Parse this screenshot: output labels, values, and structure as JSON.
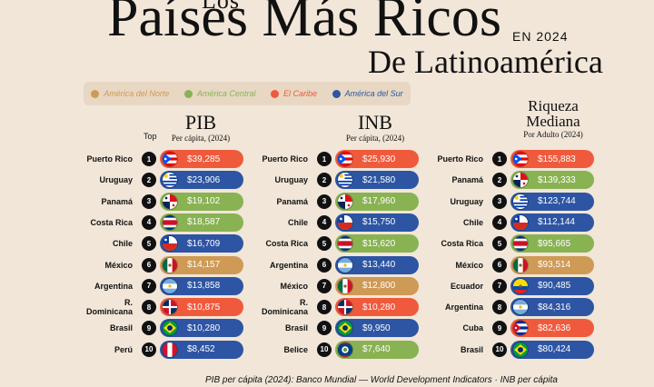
{
  "title": {
    "top": "Los",
    "main": "Países Más Ricos",
    "year": "EN 2024",
    "sub": "De Latinoamérica"
  },
  "colors": {
    "norte": "#cf9a55",
    "central": "#89b253",
    "caribe": "#f05a3c",
    "sur": "#2d55a3"
  },
  "legend": [
    {
      "label": "América del Norte",
      "region": "norte"
    },
    {
      "label": "América Central",
      "region": "central"
    },
    {
      "label": "El Caribe",
      "region": "caribe"
    },
    {
      "label": "América del Sur",
      "region": "sur"
    }
  ],
  "top_label": "Top",
  "columns": [
    {
      "heading": "PIB",
      "heading2": "",
      "subheading": "Per cápita, (2024)",
      "rows": [
        {
          "rank": "1",
          "country": "Puerto Rico",
          "value": "$39,285",
          "region": "caribe",
          "flag": "pr"
        },
        {
          "rank": "2",
          "country": "Uruguay",
          "value": "$23,906",
          "region": "sur",
          "flag": "uy"
        },
        {
          "rank": "3",
          "country": "Panamá",
          "value": "$19,102",
          "region": "central",
          "flag": "pa"
        },
        {
          "rank": "4",
          "country": "Costa Rica",
          "value": "$18,587",
          "region": "central",
          "flag": "cr"
        },
        {
          "rank": "5",
          "country": "Chile",
          "value": "$16,709",
          "region": "sur",
          "flag": "cl"
        },
        {
          "rank": "6",
          "country": "México",
          "value": "$14,157",
          "region": "norte",
          "flag": "mx"
        },
        {
          "rank": "7",
          "country": "Argentina",
          "value": "$13,858",
          "region": "sur",
          "flag": "ar"
        },
        {
          "rank": "8",
          "country": "R. Dominicana",
          "value": "$10,875",
          "region": "caribe",
          "flag": "do"
        },
        {
          "rank": "9",
          "country": "Brasil",
          "value": "$10,280",
          "region": "sur",
          "flag": "br"
        },
        {
          "rank": "10",
          "country": "Perú",
          "value": "$8,452",
          "region": "sur",
          "flag": "pe"
        }
      ]
    },
    {
      "heading": "INB",
      "heading2": "",
      "subheading": "Per cápita, (2024)",
      "rows": [
        {
          "rank": "1",
          "country": "Puerto Rico",
          "value": "$25,930",
          "region": "caribe",
          "flag": "pr"
        },
        {
          "rank": "2",
          "country": "Uruguay",
          "value": "$21,580",
          "region": "sur",
          "flag": "uy"
        },
        {
          "rank": "3",
          "country": "Panamá",
          "value": "$17,960",
          "region": "central",
          "flag": "pa"
        },
        {
          "rank": "4",
          "country": "Chile",
          "value": "$15,750",
          "region": "sur",
          "flag": "cl"
        },
        {
          "rank": "5",
          "country": "Costa Rica",
          "value": "$15,620",
          "region": "central",
          "flag": "cr"
        },
        {
          "rank": "6",
          "country": "Argentina",
          "value": "$13,440",
          "region": "sur",
          "flag": "ar"
        },
        {
          "rank": "7",
          "country": "México",
          "value": "$12,800",
          "region": "norte",
          "flag": "mx"
        },
        {
          "rank": "8",
          "country": "R. Dominicana",
          "value": "$10,280",
          "region": "caribe",
          "flag": "do"
        },
        {
          "rank": "9",
          "country": "Brasil",
          "value": "$9,950",
          "region": "sur",
          "flag": "br"
        },
        {
          "rank": "10",
          "country": "Belice",
          "value": "$7,640",
          "region": "central",
          "flag": "bz"
        }
      ]
    },
    {
      "heading": "Riqueza",
      "heading2": "Mediana",
      "subheading": "Por Adulto (2024)",
      "rows": [
        {
          "rank": "1",
          "country": "Puerto Rico",
          "value": "$155,883",
          "region": "caribe",
          "flag": "pr"
        },
        {
          "rank": "2",
          "country": "Panamá",
          "value": "$139,333",
          "region": "central",
          "flag": "pa"
        },
        {
          "rank": "3",
          "country": "Uruguay",
          "value": "$123,744",
          "region": "sur",
          "flag": "uy"
        },
        {
          "rank": "4",
          "country": "Chile",
          "value": "$112,144",
          "region": "sur",
          "flag": "cl"
        },
        {
          "rank": "5",
          "country": "Costa Rica",
          "value": "$95,665",
          "region": "central",
          "flag": "cr"
        },
        {
          "rank": "6",
          "country": "México",
          "value": "$93,514",
          "region": "norte",
          "flag": "mx"
        },
        {
          "rank": "7",
          "country": "Ecuador",
          "value": "$90,485",
          "region": "sur",
          "flag": "ec"
        },
        {
          "rank": "8",
          "country": "Argentina",
          "value": "$84,316",
          "region": "sur",
          "flag": "ar"
        },
        {
          "rank": "9",
          "country": "Cuba",
          "value": "$82,636",
          "region": "caribe",
          "flag": "cu"
        },
        {
          "rank": "10",
          "country": "Brasil",
          "value": "$80,424",
          "region": "sur",
          "flag": "br"
        }
      ]
    }
  ],
  "footnote": "PIB per cápita (2024): Banco Mundial — World Development Indicators · INB per cápita"
}
